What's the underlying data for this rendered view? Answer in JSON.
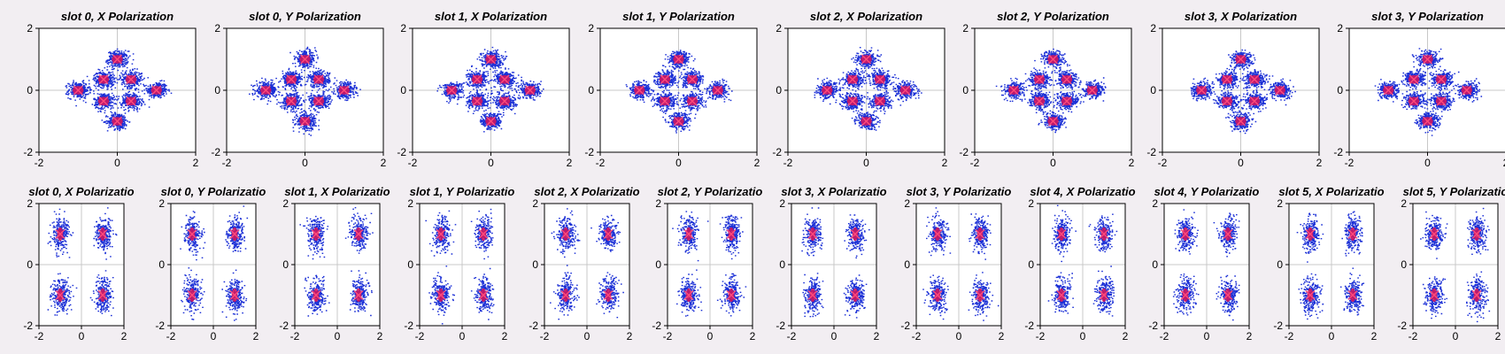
{
  "colors": {
    "background": "#f2eef2",
    "plot_bg": "#ffffff",
    "scatter": "#1a2fd6",
    "scatter_dense": "#3b1fc4",
    "cluster_core": "#d8145a",
    "marker": "#ff4a7a",
    "grid": "#c8c8c8"
  },
  "chart_data": [
    {
      "row": 1,
      "type": "scatter",
      "constellation": "8-point (rings at 0.35 and 1.0)",
      "panels": [
        {
          "title": "slot 0, X Polarization"
        },
        {
          "title": "slot 0, Y Polarization"
        },
        {
          "title": "slot 1, X Polarization"
        },
        {
          "title": "slot 1, Y Polarization"
        },
        {
          "title": "slot 2, X Polarization"
        },
        {
          "title": "slot 2, Y Polarization"
        },
        {
          "title": "slot 3, X Polarization"
        },
        {
          "title": "slot 3, Y Polarization"
        }
      ],
      "xlim": [
        -2,
        2
      ],
      "ylim": [
        -2,
        2
      ],
      "xticks": [
        "-2",
        "0",
        "2"
      ],
      "yticks": [
        "-2",
        "0",
        "2"
      ],
      "grid": true,
      "ideal_points": [
        [
          1,
          0
        ],
        [
          0,
          1
        ],
        [
          -1,
          0
        ],
        [
          0,
          -1
        ],
        [
          0.35,
          0.35
        ],
        [
          -0.35,
          0.35
        ],
        [
          -0.35,
          -0.35
        ],
        [
          0.35,
          -0.35
        ]
      ],
      "noise_sigma": 0.13
    },
    {
      "row": 2,
      "type": "scatter",
      "constellation": "QPSK",
      "panels": [
        {
          "title": "slot 0, X Polarizatio"
        },
        {
          "title": "slot 0, Y Polarizatio"
        },
        {
          "title": "slot 1, X Polarizatio"
        },
        {
          "title": "slot 1, Y Polarizatio"
        },
        {
          "title": "slot 2, X Polarizatio"
        },
        {
          "title": "slot 2, Y Polarizatio"
        },
        {
          "title": "slot 3, X Polarizatio"
        },
        {
          "title": "slot 3, Y Polarizatio"
        },
        {
          "title": "slot 4, X Polarizatio"
        },
        {
          "title": "slot 4, Y Polarizatio"
        },
        {
          "title": "slot 5, X Polarizatio"
        },
        {
          "title": "slot 5, Y Polarizatio"
        }
      ],
      "xlim": [
        -2,
        2
      ],
      "ylim": [
        -2,
        2
      ],
      "xticks": [
        "-2",
        "0",
        "2"
      ],
      "yticks": [
        "-2",
        "0",
        "2"
      ],
      "grid": true,
      "ideal_points": [
        [
          1,
          1
        ],
        [
          -1,
          1
        ],
        [
          -1,
          -1
        ],
        [
          1,
          -1
        ]
      ],
      "noise_sigma": 0.2
    }
  ]
}
